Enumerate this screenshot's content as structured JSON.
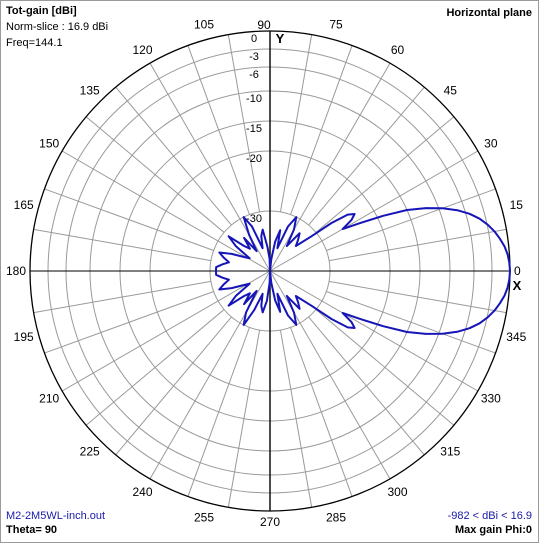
{
  "header": {
    "title": "Tot-gain [dBi]",
    "norm": "Norm-slice : 16.9 dBi",
    "freq": "Freq=144.1",
    "plane": "Horizontal plane"
  },
  "footer": {
    "file": "M2-2M5WL-inch.out",
    "theta": "Theta= 90",
    "range": "-982 < dBi < 16.9",
    "maxgain": "Max gain Phi:0"
  },
  "axes": {
    "x_label": "X",
    "y_label": "Y"
  },
  "colors": {
    "trace": "#1515b8",
    "grid": "#9a9a9a",
    "axis": "#000000"
  },
  "chart_data": {
    "type": "polar",
    "title": "Tot-gain [dBi]",
    "angle_labels": [
      "0",
      "15",
      "30",
      "45",
      "60",
      "75",
      "90",
      "105",
      "120",
      "135",
      "150",
      "165",
      "180",
      "195",
      "210",
      "225",
      "240",
      "255",
      "270",
      "285",
      "300",
      "315",
      "330",
      "345"
    ],
    "radial_ticks": [
      "0",
      "-3",
      "-6",
      "-10",
      "-15",
      "-20",
      "-30"
    ],
    "radial_range_db": [
      -40,
      0
    ],
    "normalization_dbi": 16.9,
    "series": [
      {
        "angle_deg": [
          0,
          2,
          4,
          6,
          8,
          10,
          12,
          14,
          16,
          18,
          20,
          22,
          24,
          26,
          28,
          30,
          32,
          34,
          36,
          38,
          40,
          44,
          48,
          52,
          56,
          60,
          64,
          68,
          72,
          76,
          80,
          84,
          88,
          92,
          96,
          100,
          104,
          108,
          112,
          116,
          120,
          124,
          128,
          132,
          136,
          140,
          144,
          148,
          152,
          156,
          160,
          164,
          168,
          172,
          176,
          180,
          184,
          188,
          192,
          196,
          200,
          204,
          208,
          212,
          216,
          220,
          224,
          228,
          232,
          236,
          240,
          244,
          248,
          252,
          256,
          260,
          264,
          268,
          272,
          276,
          280,
          284,
          288,
          292,
          296,
          300,
          304,
          308,
          312,
          316,
          320,
          322,
          324,
          326,
          328,
          330,
          332,
          334,
          336,
          338,
          340,
          342,
          344,
          346,
          348,
          350,
          352,
          354,
          356,
          358
        ],
        "gain_db": [
          0,
          -0.1,
          -0.3,
          -0.7,
          -1.3,
          -2.0,
          -2.9,
          -4.0,
          -5.4,
          -7.2,
          -9.4,
          -12,
          -15,
          -19,
          -23,
          -26,
          -24,
          -23,
          -24,
          -27,
          -31,
          -34,
          -33,
          -32,
          -35,
          -32,
          -30,
          -32,
          -36,
          -33,
          -35,
          -38,
          -40,
          -38,
          -36,
          -33,
          -34,
          -36,
          -32,
          -30,
          -33,
          -36,
          -33,
          -35,
          -34,
          -31,
          -33,
          -36,
          -35,
          -33,
          -31,
          -32,
          -33,
          -32,
          -31,
          -31,
          -31,
          -32,
          -33,
          -32,
          -31,
          -33,
          -35,
          -36,
          -33,
          -31,
          -34,
          -35,
          -33,
          -36,
          -32,
          -30,
          -33,
          -36,
          -34,
          -33,
          -35,
          -38,
          -40,
          -38,
          -35,
          -33,
          -36,
          -32,
          -30,
          -32,
          -35,
          -32,
          -33,
          -34,
          -31,
          -27,
          -24,
          -23,
          -24,
          -26,
          -23,
          -19,
          -15,
          -12,
          -9.4,
          -7.2,
          -5.4,
          -4.0,
          -2.9,
          -2.0,
          -1.3,
          -0.7,
          -0.3,
          -0.1
        ]
      }
    ],
    "grid": true
  }
}
